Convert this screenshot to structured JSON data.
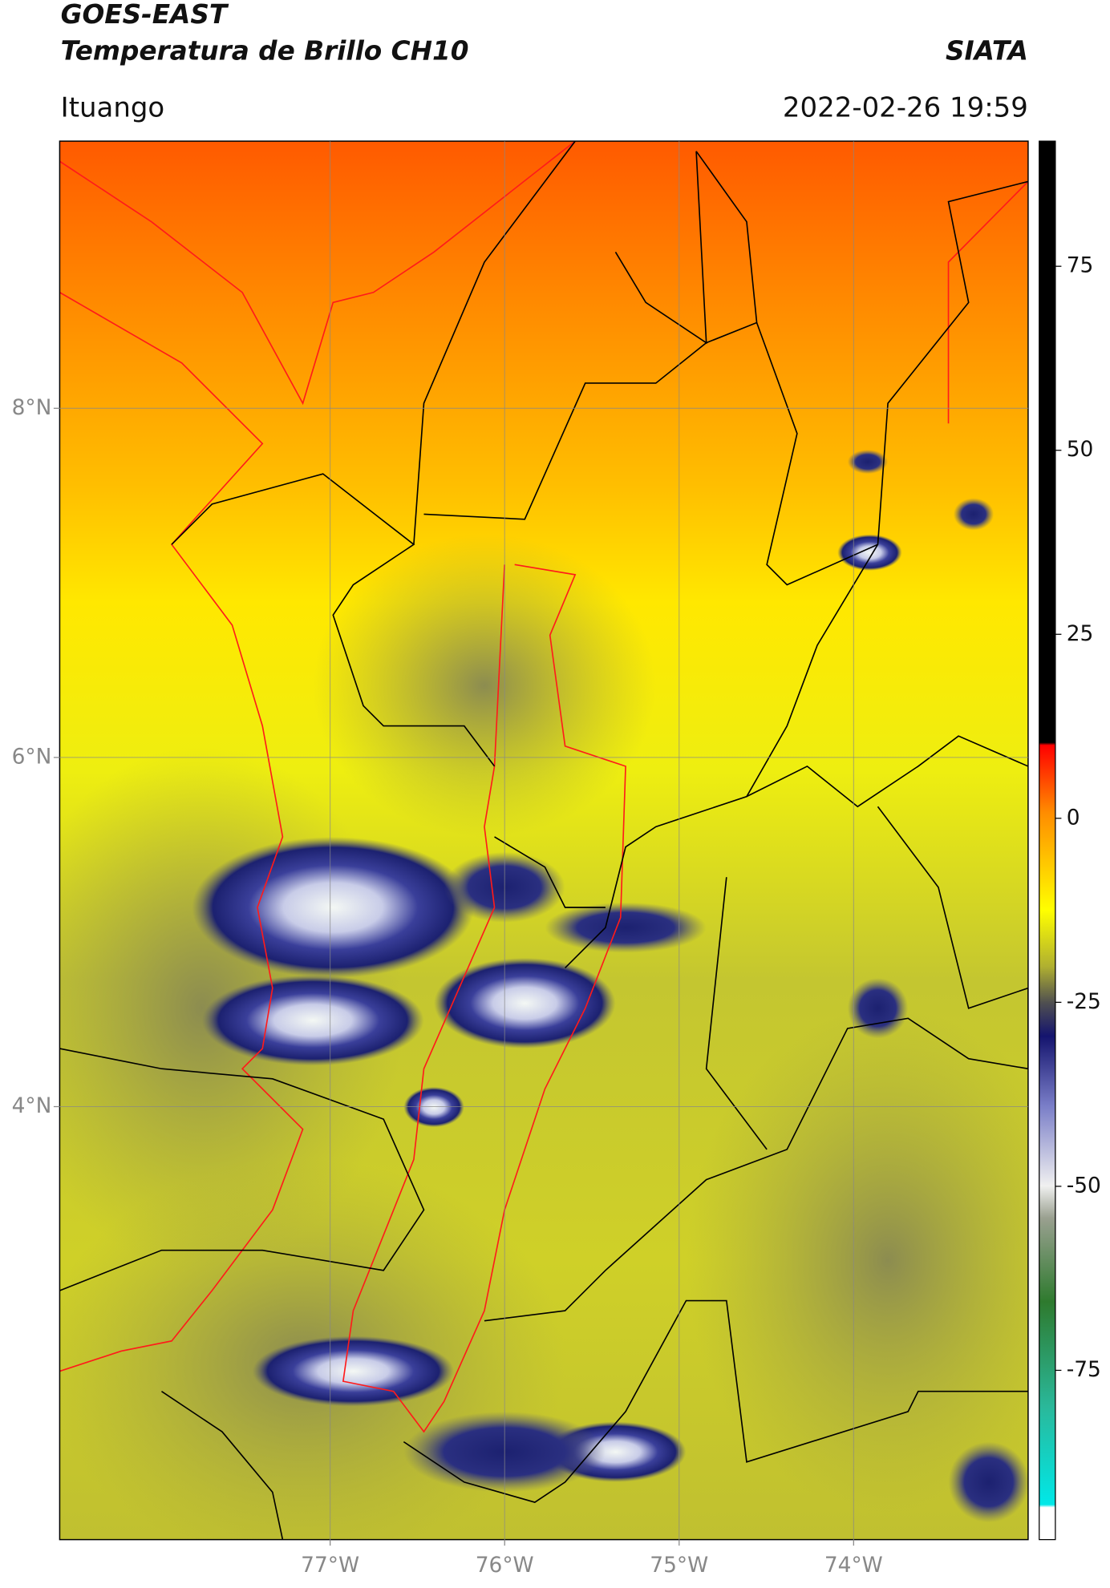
{
  "header": {
    "title": "GOES-EAST",
    "subtitle": "Temperatura de Brillo CH10",
    "organization": "SIATA",
    "region": "Ituango",
    "datetime": "2022-02-26 19:59"
  },
  "map": {
    "lonlim": [
      -78.55,
      -73.0
    ],
    "latlim": [
      1.52,
      9.53
    ],
    "lon_ticks": [
      {
        "value": -77,
        "label": "77°W"
      },
      {
        "value": -76,
        "label": "76°W"
      },
      {
        "value": -75,
        "label": "75°W"
      },
      {
        "value": -74,
        "label": "74°W"
      }
    ],
    "lat_ticks": [
      {
        "value": 8,
        "label": "8°N"
      },
      {
        "value": 6,
        "label": "6°N"
      },
      {
        "value": 4,
        "label": "4°N"
      }
    ]
  },
  "colorbar": {
    "range": [
      -98,
      92
    ],
    "ticks": [
      75,
      50,
      25,
      0,
      -25,
      -50,
      -75
    ]
  }
}
